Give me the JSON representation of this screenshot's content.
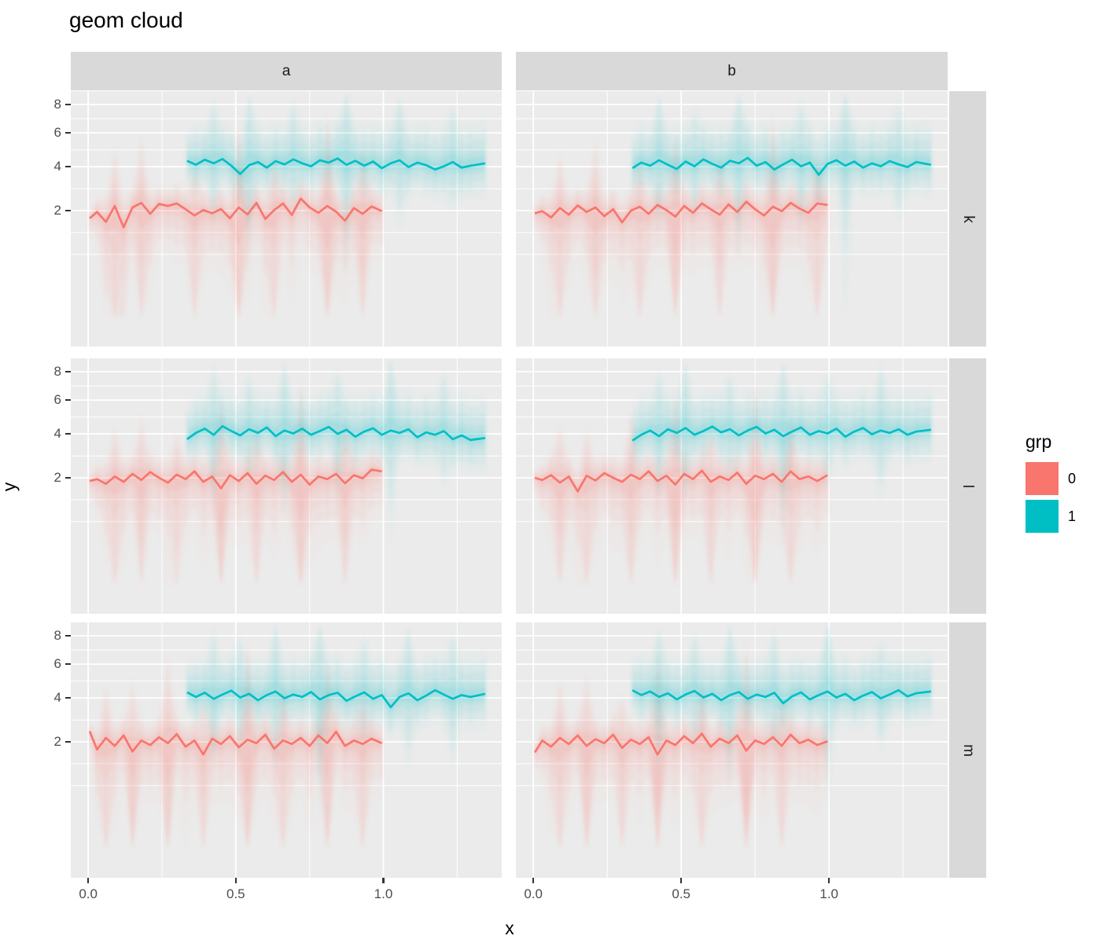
{
  "title": "geom cloud",
  "axes": {
    "x_title": "x",
    "y_title": "y",
    "x_tick_labels": [
      "0.0",
      "0.5",
      "1.0"
    ],
    "x_tick_values": [
      0,
      0.5,
      1.0
    ],
    "y_tick_labels": [
      "8",
      "6",
      "4",
      "2"
    ],
    "y_tick_values": [
      8,
      6,
      4,
      2
    ]
  },
  "facets": {
    "cols": [
      "a",
      "b"
    ],
    "rows": [
      "k",
      "l",
      "m"
    ]
  },
  "legend": {
    "title": "grp",
    "items": [
      {
        "label": "0",
        "color": "#F8766D"
      },
      {
        "label": "1",
        "color": "#00BFC4"
      }
    ]
  },
  "colors": {
    "panel_bg": "#EBEBEB",
    "strip_bg": "#D9D9D9",
    "grid": "#FFFFFF",
    "tick_text": "#4D4D4D",
    "tick_mark": "#333333",
    "grp0": "#F8766D",
    "grp1": "#00BFC4"
  },
  "chart_data": {
    "type": "area",
    "subtype": "cloud-ribbon-with-line",
    "title": "geom cloud",
    "xlabel": "x",
    "ylabel": "y",
    "y_scale": "sqrt",
    "x_major_breaks": [
      0,
      0.5,
      1.0
    ],
    "x_minor_breaks": [
      0.25,
      0.75,
      1.25
    ],
    "y_major_breaks": [
      2,
      4,
      6,
      8
    ],
    "y_minor_breaks": [
      6.96,
      4.95,
      2.91,
      1.26,
      0.69
    ],
    "x_range_grp0": [
      0,
      1.0
    ],
    "x_range_grp1": [
      0.335,
      1.345
    ],
    "legend_position": "right",
    "x_grp0": [
      0.005,
      0.03,
      0.06,
      0.09,
      0.12,
      0.15,
      0.18,
      0.21,
      0.24,
      0.27,
      0.3,
      0.33,
      0.36,
      0.39,
      0.42,
      0.45,
      0.48,
      0.51,
      0.54,
      0.57,
      0.6,
      0.63,
      0.66,
      0.69,
      0.72,
      0.75,
      0.78,
      0.81,
      0.84,
      0.87,
      0.9,
      0.93,
      0.96,
      0.995
    ],
    "x_grp1": [
      0.335,
      0.365,
      0.395,
      0.425,
      0.455,
      0.485,
      0.515,
      0.545,
      0.575,
      0.605,
      0.635,
      0.665,
      0.695,
      0.725,
      0.755,
      0.785,
      0.815,
      0.845,
      0.875,
      0.905,
      0.935,
      0.965,
      0.995,
      1.025,
      1.055,
      1.085,
      1.115,
      1.145,
      1.175,
      1.205,
      1.235,
      1.265,
      1.295,
      1.345
    ],
    "panels": [
      {
        "col": "a",
        "row": "k",
        "grp0_y": [
          1.72,
          1.95,
          1.6,
          2.18,
          1.42,
          2.12,
          2.3,
          1.88,
          2.26,
          2.18,
          2.28,
          2.05,
          1.82,
          2.02,
          1.9,
          2.06,
          1.72,
          2.12,
          1.86,
          2.3,
          1.7,
          2.02,
          2.28,
          1.84,
          2.48,
          2.12,
          1.92,
          2.18,
          1.96,
          1.64,
          2.1,
          1.88,
          2.16,
          1.98
        ],
        "grp0_s": [
          0.15,
          0.3,
          0.55,
          1.6,
          0.6,
          0.45,
          1.9,
          0.5,
          0.42,
          0.4,
          0.5,
          0.45,
          1.1,
          0.5,
          0.42,
          0.5,
          0.45,
          2.6,
          0.52,
          0.45,
          0.5,
          1.3,
          0.45,
          0.52,
          0.45,
          0.5,
          0.46,
          2.9,
          0.52,
          0.46,
          0.5,
          1.7,
          0.46,
          0.4
        ],
        "grp1_y": [
          4.32,
          4.1,
          4.38,
          4.18,
          4.42,
          4.05,
          3.62,
          4.08,
          4.25,
          3.95,
          4.3,
          4.12,
          4.4,
          4.18,
          4.02,
          4.35,
          4.22,
          4.45,
          4.1,
          4.32,
          4.05,
          4.28,
          3.92,
          4.18,
          4.35,
          3.98,
          4.22,
          4.08,
          3.85,
          4.02,
          4.25,
          3.95,
          4.05,
          4.18
        ],
        "grp1_s": [
          0.55,
          0.7,
          0.6,
          1.3,
          0.65,
          0.7,
          0.62,
          1.6,
          0.7,
          0.64,
          0.72,
          0.66,
          1.2,
          0.7,
          0.62,
          0.72,
          0.66,
          0.74,
          1.8,
          0.66,
          0.72,
          0.66,
          0.74,
          0.68,
          1.4,
          0.72,
          0.66,
          0.74,
          0.68,
          0.74,
          1.1,
          0.7,
          0.74,
          0.8
        ]
      },
      {
        "col": "b",
        "row": "k",
        "grp0_y": [
          1.9,
          1.98,
          1.75,
          2.1,
          1.85,
          2.2,
          1.95,
          2.12,
          1.8,
          2.05,
          1.58,
          2.0,
          2.15,
          1.88,
          2.22,
          2.02,
          1.78,
          2.18,
          1.92,
          2.28,
          2.05,
          1.85,
          2.24,
          1.95,
          2.35,
          2.05,
          1.82,
          2.15,
          1.98,
          2.3,
          2.08,
          1.92,
          2.28,
          2.22
        ],
        "grp0_s": [
          0.18,
          0.35,
          0.5,
          1.4,
          0.48,
          0.42,
          0.5,
          1.9,
          0.46,
          0.5,
          0.44,
          0.52,
          1.2,
          0.46,
          0.5,
          0.44,
          2.4,
          0.5,
          0.46,
          0.52,
          0.46,
          1.5,
          0.5,
          0.46,
          0.52,
          0.46,
          0.5,
          2.8,
          0.46,
          0.52,
          0.46,
          0.5,
          1.3,
          0.42
        ],
        "grp1_y": [
          3.92,
          4.22,
          4.05,
          4.35,
          4.1,
          3.88,
          4.28,
          4.02,
          4.4,
          4.15,
          3.95,
          4.32,
          4.18,
          4.48,
          4.05,
          4.25,
          3.85,
          4.12,
          4.38,
          4.02,
          4.22,
          3.58,
          4.15,
          4.35,
          4.05,
          4.28,
          3.95,
          4.18,
          4.02,
          4.3,
          4.12,
          3.98,
          4.25,
          4.1
        ],
        "grp1_s": [
          0.6,
          0.72,
          0.62,
          1.5,
          0.66,
          0.72,
          0.62,
          1.1,
          0.72,
          0.64,
          0.74,
          0.66,
          1.7,
          0.72,
          0.64,
          0.74,
          0.66,
          0.74,
          0.68,
          1.3,
          0.74,
          0.68,
          0.74,
          0.66,
          1.9,
          0.72,
          0.66,
          0.74,
          0.68,
          0.74,
          1.2,
          0.72,
          0.74,
          0.78
        ]
      },
      {
        "col": "a",
        "row": "l",
        "grp0_y": [
          1.88,
          1.95,
          1.78,
          2.05,
          1.85,
          2.15,
          1.92,
          2.22,
          2.0,
          1.82,
          2.12,
          1.95,
          2.25,
          1.85,
          2.05,
          1.62,
          2.1,
          1.88,
          2.18,
          1.78,
          2.08,
          1.92,
          2.22,
          1.85,
          2.12,
          1.75,
          2.05,
          1.95,
          2.15,
          1.8,
          2.1,
          1.98,
          2.32,
          2.25
        ],
        "grp0_s": [
          0.16,
          0.32,
          0.48,
          1.3,
          0.5,
          0.44,
          1.7,
          0.48,
          0.44,
          0.52,
          1.1,
          0.48,
          0.44,
          0.52,
          0.46,
          2.5,
          0.5,
          0.46,
          0.52,
          1.4,
          0.46,
          0.52,
          0.46,
          0.5,
          2.9,
          0.48,
          0.52,
          0.46,
          0.5,
          1.6,
          0.46,
          0.5,
          0.48,
          0.42
        ],
        "grp1_y": [
          3.72,
          4.05,
          4.28,
          3.95,
          4.42,
          4.15,
          3.92,
          4.25,
          4.05,
          4.35,
          3.88,
          4.18,
          4.02,
          4.28,
          3.95,
          4.15,
          4.38,
          4.0,
          4.22,
          3.85,
          4.12,
          4.3,
          3.95,
          4.18,
          4.05,
          4.25,
          3.82,
          4.08,
          3.95,
          4.15,
          3.72,
          3.92,
          3.68,
          3.78
        ],
        "grp1_s": [
          0.55,
          0.68,
          0.6,
          1.4,
          0.64,
          0.7,
          0.62,
          1.1,
          0.7,
          0.62,
          0.72,
          1.6,
          0.66,
          0.72,
          0.64,
          0.72,
          0.66,
          1.3,
          0.68,
          0.74,
          0.66,
          0.72,
          0.66,
          1.8,
          0.68,
          0.72,
          0.66,
          0.74,
          0.68,
          1.2,
          0.72,
          0.74,
          0.7,
          0.76
        ]
      },
      {
        "col": "b",
        "row": "l",
        "grp0_y": [
          2.0,
          1.92,
          2.1,
          1.82,
          2.05,
          1.52,
          2.08,
          1.9,
          2.18,
          2.0,
          1.85,
          2.12,
          1.95,
          2.25,
          1.88,
          2.08,
          1.75,
          2.15,
          1.95,
          2.28,
          1.85,
          2.05,
          1.92,
          2.2,
          1.78,
          2.08,
          1.95,
          2.15,
          1.85,
          2.25,
          1.95,
          2.05,
          1.88,
          2.1
        ],
        "grp0_s": [
          0.17,
          0.33,
          0.52,
          1.5,
          0.48,
          0.44,
          1.2,
          0.5,
          0.44,
          0.52,
          0.46,
          1.8,
          0.48,
          0.44,
          0.52,
          0.46,
          2.7,
          0.5,
          0.44,
          0.52,
          1.3,
          0.46,
          0.52,
          0.46,
          0.5,
          3.0,
          0.46,
          0.52,
          0.46,
          1.5,
          0.5,
          0.46,
          0.5,
          0.44
        ],
        "grp1_y": [
          3.65,
          3.95,
          4.18,
          3.88,
          4.25,
          4.05,
          4.32,
          3.95,
          4.15,
          4.4,
          4.08,
          4.25,
          3.92,
          4.18,
          4.38,
          4.02,
          4.22,
          3.88,
          4.12,
          4.35,
          3.95,
          4.15,
          4.02,
          4.28,
          3.85,
          4.12,
          4.32,
          3.98,
          4.18,
          4.05,
          4.25,
          3.95,
          4.12,
          4.22
        ],
        "grp1_s": [
          0.58,
          0.7,
          0.62,
          1.3,
          0.66,
          0.72,
          1.5,
          0.64,
          0.72,
          0.64,
          0.74,
          1.1,
          0.68,
          0.72,
          0.64,
          0.74,
          0.66,
          1.7,
          0.68,
          0.74,
          0.66,
          0.72,
          1.2,
          0.68,
          0.72,
          0.66,
          0.74,
          0.68,
          1.4,
          0.72,
          0.66,
          0.74,
          0.7,
          0.76
        ]
      },
      {
        "col": "a",
        "row": "m",
        "grp0_y": [
          2.42,
          1.72,
          2.15,
          1.85,
          2.25,
          1.65,
          2.05,
          1.88,
          2.18,
          1.95,
          2.3,
          1.82,
          2.05,
          1.55,
          2.12,
          1.92,
          2.22,
          1.8,
          2.08,
          1.95,
          2.28,
          1.75,
          2.05,
          1.92,
          2.15,
          1.85,
          2.25,
          1.95,
          2.4,
          1.85,
          2.05,
          1.92,
          2.12,
          1.95
        ],
        "grp0_s": [
          0.2,
          0.45,
          1.4,
          0.5,
          0.44,
          1.8,
          0.48,
          0.44,
          0.52,
          2.6,
          0.46,
          0.52,
          0.46,
          1.2,
          0.5,
          0.46,
          0.52,
          0.46,
          3.1,
          0.48,
          0.52,
          0.46,
          1.5,
          0.5,
          0.46,
          0.52,
          0.46,
          2.4,
          0.5,
          0.46,
          0.52,
          1.3,
          0.48,
          0.42
        ],
        "grp1_y": [
          4.3,
          4.05,
          4.28,
          3.95,
          4.18,
          4.4,
          4.02,
          4.22,
          3.88,
          4.15,
          4.35,
          3.98,
          4.18,
          4.05,
          4.32,
          3.92,
          4.15,
          4.28,
          3.85,
          4.08,
          4.3,
          3.95,
          4.15,
          3.52,
          4.05,
          4.25,
          3.88,
          4.12,
          4.42,
          4.18,
          3.95,
          4.15,
          4.05,
          4.22
        ],
        "grp1_s": [
          0.56,
          0.7,
          0.62,
          1.4,
          0.64,
          0.7,
          1.2,
          0.64,
          0.72,
          0.64,
          1.6,
          0.66,
          0.72,
          0.64,
          0.74,
          1.8,
          0.66,
          0.74,
          0.66,
          0.72,
          1.1,
          0.68,
          0.74,
          0.68,
          0.72,
          1.5,
          0.66,
          0.74,
          0.68,
          0.74,
          1.3,
          0.7,
          0.74,
          0.78
        ]
      },
      {
        "col": "b",
        "row": "m",
        "grp0_y": [
          1.62,
          2.05,
          1.82,
          2.15,
          1.92,
          2.25,
          1.85,
          2.1,
          1.95,
          2.28,
          1.78,
          2.08,
          1.92,
          2.18,
          1.55,
          2.05,
          1.88,
          2.22,
          1.95,
          2.32,
          1.82,
          2.12,
          1.95,
          2.25,
          1.68,
          2.05,
          1.92,
          2.18,
          1.85,
          2.28,
          1.95,
          2.08,
          1.88,
          2.02
        ],
        "grp0_s": [
          0.18,
          0.36,
          0.5,
          1.6,
          0.48,
          0.44,
          2.0,
          0.5,
          0.44,
          0.52,
          1.3,
          0.46,
          0.52,
          0.46,
          2.8,
          0.48,
          0.52,
          0.46,
          0.5,
          1.4,
          0.46,
          0.52,
          0.46,
          0.5,
          3.2,
          0.46,
          0.52,
          0.46,
          1.2,
          0.52,
          0.46,
          0.5,
          0.48,
          0.42
        ],
        "grp1_y": [
          4.42,
          4.15,
          4.35,
          4.05,
          4.25,
          3.92,
          4.18,
          4.38,
          4.02,
          4.22,
          3.88,
          4.15,
          4.32,
          3.95,
          4.18,
          4.05,
          4.28,
          3.72,
          4.08,
          4.3,
          3.92,
          4.15,
          4.35,
          4.02,
          4.22,
          3.88,
          4.12,
          4.32,
          3.98,
          4.18,
          4.42,
          4.08,
          4.25,
          4.35
        ],
        "grp1_s": [
          0.58,
          0.72,
          0.62,
          1.5,
          0.66,
          0.72,
          0.64,
          1.2,
          0.72,
          0.64,
          0.74,
          1.7,
          0.66,
          0.72,
          0.64,
          0.74,
          1.3,
          0.68,
          0.74,
          0.66,
          0.72,
          0.66,
          1.9,
          0.68,
          0.72,
          0.66,
          0.74,
          0.68,
          1.1,
          0.72,
          0.66,
          0.74,
          0.7,
          0.76
        ]
      }
    ]
  }
}
